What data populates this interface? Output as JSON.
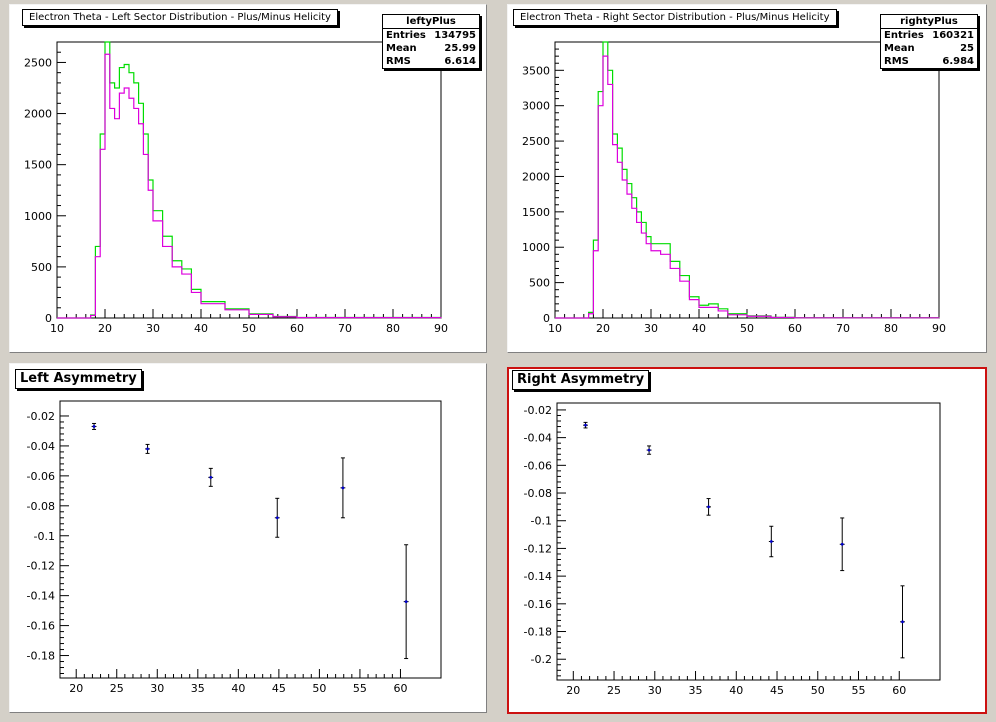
{
  "pads": [
    {
      "title": "Electron Theta - Left Sector Distribution - Plus/Minus Helicity"
    },
    {
      "title": "Electron Theta - Right Sector Distribution - Plus/Minus Helicity"
    },
    {
      "title": "Left Asymmetry"
    },
    {
      "title": "Right Asymmetry"
    }
  ],
  "stats": [
    {
      "name": "leftyPlus",
      "rows": [
        {
          "label": "Entries",
          "value": "134795"
        },
        {
          "label": "Mean",
          "value": "25.99"
        },
        {
          "label": "RMS",
          "value": "6.614"
        }
      ]
    },
    {
      "name": "rightyPlus",
      "rows": [
        {
          "label": "Entries",
          "value": "160321"
        },
        {
          "label": "Mean",
          "value": "25"
        },
        {
          "label": "RMS",
          "value": "6.984"
        }
      ]
    }
  ],
  "colors": {
    "plus": "#00dd00",
    "minus": "#dd00dd",
    "points": "#0000cc",
    "active_border": "#cc1111"
  },
  "chart_data": [
    {
      "type": "line",
      "title": "Electron Theta - Left Sector Distribution - Plus/Minus Helicity",
      "xlim": [
        10,
        90
      ],
      "ylim": [
        0,
        2700
      ],
      "xticks": [
        10,
        20,
        30,
        40,
        50,
        60,
        70,
        80,
        90
      ],
      "yticks": [
        0,
        500,
        1000,
        1500,
        2000,
        2500
      ],
      "series": [
        {
          "color": "#00dd00",
          "x": [
            10,
            16,
            17,
            18,
            19,
            20,
            21,
            22,
            23,
            24,
            25,
            26,
            27,
            28,
            29,
            30,
            32,
            34,
            36,
            38,
            40,
            45,
            50,
            55,
            60,
            90
          ],
          "y": [
            0,
            0,
            30,
            700,
            1800,
            2700,
            2300,
            2250,
            2450,
            2480,
            2400,
            2300,
            2100,
            1800,
            1350,
            1050,
            800,
            560,
            480,
            280,
            160,
            90,
            40,
            15,
            5,
            0
          ]
        },
        {
          "color": "#dd00dd",
          "x": [
            10,
            16,
            17,
            18,
            19,
            20,
            21,
            22,
            23,
            24,
            25,
            26,
            27,
            28,
            29,
            30,
            32,
            34,
            36,
            38,
            40,
            45,
            50,
            55,
            60,
            90
          ],
          "y": [
            0,
            0,
            25,
            600,
            1650,
            2580,
            2050,
            1950,
            2200,
            2250,
            2150,
            2050,
            1900,
            1600,
            1250,
            950,
            700,
            500,
            430,
            250,
            140,
            80,
            35,
            12,
            4,
            0
          ]
        }
      ]
    },
    {
      "type": "line",
      "title": "Electron Theta - Right Sector Distribution - Plus/Minus Helicity",
      "xlim": [
        10,
        90
      ],
      "ylim": [
        0,
        3900
      ],
      "xticks": [
        10,
        20,
        30,
        40,
        50,
        60,
        70,
        80,
        90
      ],
      "yticks": [
        0,
        500,
        1000,
        1500,
        2000,
        2500,
        3000,
        3500
      ],
      "series": [
        {
          "color": "#00dd00",
          "x": [
            10,
            16,
            17,
            18,
            19,
            20,
            21,
            22,
            23,
            24,
            25,
            26,
            27,
            28,
            29,
            30,
            32,
            34,
            36,
            38,
            40,
            42,
            44,
            46,
            50,
            55,
            60,
            90
          ],
          "y": [
            0,
            0,
            80,
            1100,
            3200,
            3900,
            3500,
            2600,
            2400,
            2100,
            1900,
            1700,
            1500,
            1350,
            1150,
            1050,
            1050,
            800,
            600,
            300,
            180,
            200,
            130,
            60,
            30,
            10,
            4,
            0
          ]
        },
        {
          "color": "#dd00dd",
          "x": [
            10,
            16,
            17,
            18,
            19,
            20,
            21,
            22,
            23,
            24,
            25,
            26,
            27,
            28,
            29,
            30,
            32,
            34,
            36,
            38,
            40,
            42,
            44,
            46,
            50,
            55,
            60,
            90
          ],
          "y": [
            0,
            0,
            60,
            950,
            3000,
            3700,
            3300,
            2450,
            2200,
            1950,
            1750,
            1550,
            1350,
            1200,
            1050,
            950,
            900,
            700,
            520,
            260,
            150,
            150,
            100,
            45,
            25,
            8,
            3,
            0
          ]
        }
      ]
    },
    {
      "type": "scatter",
      "title": "Left Asymmetry",
      "xlim": [
        18,
        65
      ],
      "ylim": [
        -0.195,
        -0.01
      ],
      "xticks": [
        20,
        25,
        30,
        35,
        40,
        45,
        50,
        55,
        60
      ],
      "yticks": [
        -0.02,
        -0.04,
        -0.06,
        -0.08,
        -0.1,
        -0.12,
        -0.14,
        -0.16,
        -0.18
      ],
      "x": [
        22.2,
        28.8,
        36.6,
        44.8,
        52.9,
        60.7
      ],
      "y": [
        -0.027,
        -0.042,
        -0.061,
        -0.088,
        -0.068,
        -0.144
      ],
      "yerr": [
        0.002,
        0.003,
        0.006,
        0.013,
        0.02,
        0.038
      ],
      "xerr": [
        0.3,
        0.3,
        0.3,
        0.3,
        0.3,
        0.3
      ]
    },
    {
      "type": "scatter",
      "title": "Right Asymmetry",
      "xlim": [
        18,
        65
      ],
      "ylim": [
        -0.215,
        -0.015
      ],
      "xticks": [
        20,
        25,
        30,
        35,
        40,
        45,
        50,
        55,
        60
      ],
      "yticks": [
        -0.02,
        -0.04,
        -0.06,
        -0.08,
        -0.1,
        -0.12,
        -0.14,
        -0.16,
        -0.18,
        -0.2
      ],
      "x": [
        21.5,
        29.3,
        36.6,
        44.3,
        53.0,
        60.4
      ],
      "y": [
        -0.031,
        -0.049,
        -0.09,
        -0.115,
        -0.117,
        -0.173
      ],
      "yerr": [
        0.002,
        0.003,
        0.006,
        0.011,
        0.019,
        0.026
      ],
      "xerr": [
        0.3,
        0.3,
        0.3,
        0.3,
        0.3,
        0.3
      ]
    }
  ]
}
